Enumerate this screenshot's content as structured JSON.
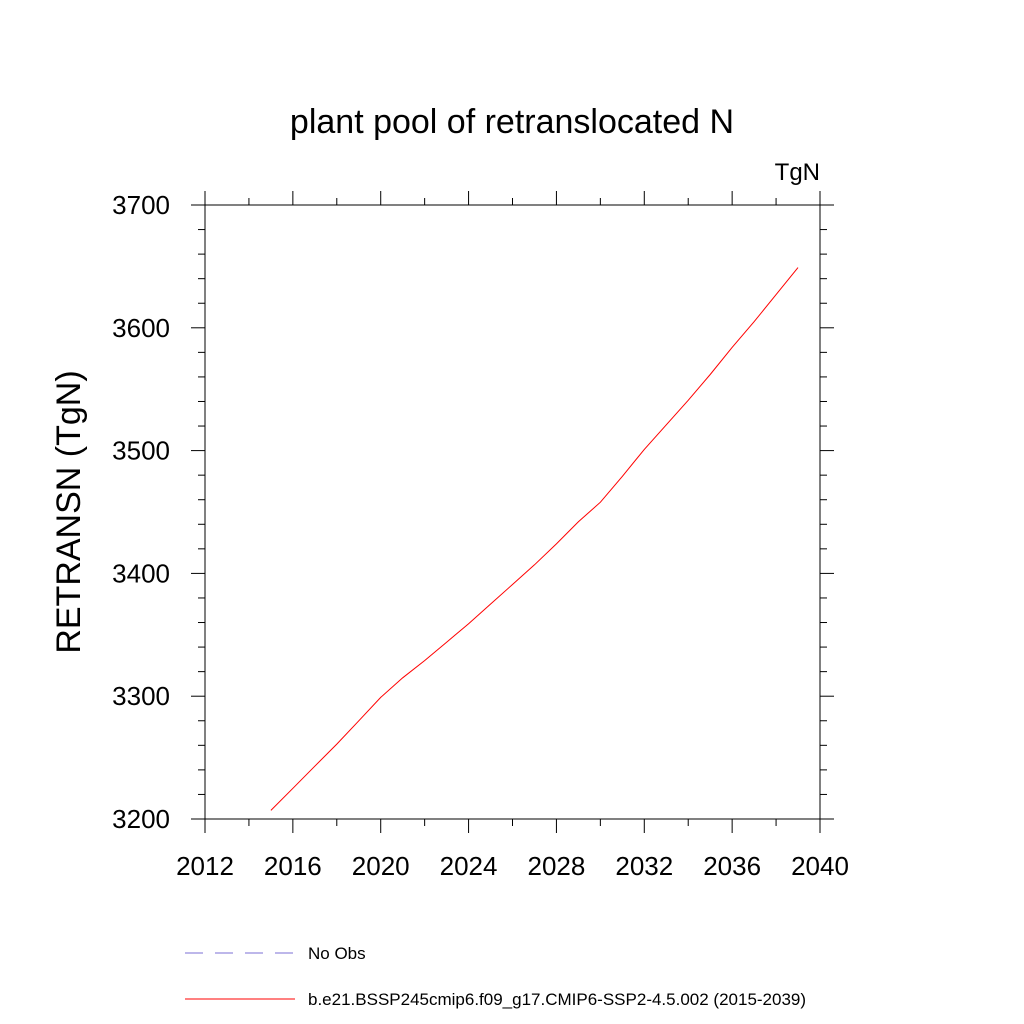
{
  "chart_data": {
    "type": "line",
    "title": "plant pool of retranslocated N",
    "units_label": "TgN",
    "ylabel": "RETRANSN  (TgN)",
    "xlabel": "",
    "xlim": [
      2012,
      2040
    ],
    "ylim": [
      3200,
      3700
    ],
    "x_ticks": [
      2012,
      2016,
      2020,
      2024,
      2028,
      2032,
      2036,
      2040
    ],
    "y_ticks": [
      3200,
      3300,
      3400,
      3500,
      3600,
      3700
    ],
    "x_tick_labels": [
      "2012",
      "2016",
      "2020",
      "2024",
      "2028",
      "2032",
      "2036",
      "2040"
    ],
    "y_tick_labels": [
      "3200",
      "3300",
      "3400",
      "3500",
      "3600",
      "3700"
    ],
    "grid": false,
    "legend_position": "bottom",
    "series": [
      {
        "name": "b.e21.BSSP245cmip6.f09_g17.CMIP6-SSP2-4.5.002 (2015-2039)",
        "color": "#ff0000",
        "line_style": "solid",
        "x": [
          2015,
          2016,
          2017,
          2018,
          2019,
          2020,
          2021,
          2022,
          2023,
          2024,
          2025,
          2026,
          2027,
          2028,
          2029,
          2030,
          2031,
          2032,
          2033,
          2034,
          2035,
          2036,
          2037,
          2038,
          2039
        ],
        "y": [
          3207,
          3225,
          3243,
          3261,
          3280,
          3299,
          3315,
          3329,
          3344,
          3359,
          3375,
          3391,
          3407,
          3424,
          3442,
          3458,
          3479,
          3501,
          3521,
          3541,
          3562,
          3584,
          3605,
          3627,
          3649
        ]
      }
    ],
    "legend": [
      {
        "label": "No Obs",
        "color": "#7b6fd6",
        "line_style": "dashed"
      },
      {
        "label": "b.e21.BSSP245cmip6.f09_g17.CMIP6-SSP2-4.5.002 (2015-2039)",
        "color": "#ff0000",
        "line_style": "solid"
      }
    ]
  }
}
